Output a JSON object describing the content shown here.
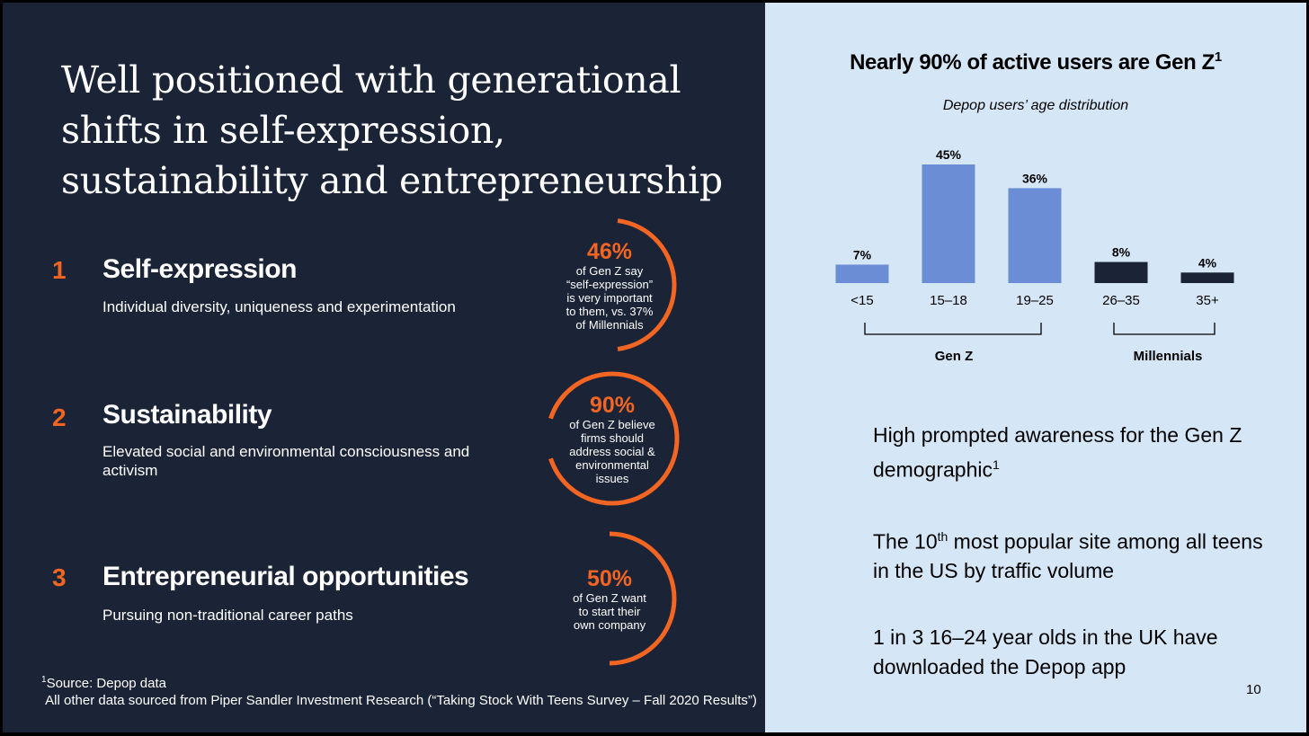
{
  "left": {
    "title": "Well positioned with generational shifts in self-expression, sustainability and entrepreneurship",
    "items": [
      {
        "num": "1",
        "heading": "Self-expression",
        "desc": "Individual diversity, uniqueness and experimentation",
        "pct": "46%",
        "caption": "of Gen Z say\n“self-expression”\nis very important\nto them, vs. 37%\nof Millennials",
        "ring_fraction": 0.46
      },
      {
        "num": "2",
        "heading": "Sustainability",
        "desc": "Elevated social and environmental consciousness and activism",
        "pct": "90%",
        "caption": "of Gen Z believe\nfirms should\naddress social &\nenvironmental\nissues",
        "ring_fraction": 0.9
      },
      {
        "num": "3",
        "heading": "Entrepreneurial opportunities",
        "desc": "Pursuing non-traditional career paths",
        "pct": "50%",
        "caption": "of Gen Z want\nto start their\nown company",
        "ring_fraction": 0.5
      }
    ],
    "footnote_sup": "1",
    "footnote_line1": "Source: Depop data",
    "footnote_line2": "All other data sourced from Piper Sandler Investment Research (“Taking Stock With Teens Survey – Fall 2020 Results”)"
  },
  "right": {
    "chart_title": "Nearly 90% of active users are Gen Z",
    "chart_title_sup": "1",
    "chart_subtitle": "Depop users’ age distribution",
    "stat1_main": "High prompted awareness for the Gen Z demographic",
    "stat1_sup": "1",
    "stat2_pre": "The 10",
    "stat2_sup": "th",
    "stat2_post": " most popular site among all teens in the US by traffic volume",
    "stat3": "1 in 3 16–24 year olds in the UK have downloaded the Depop app",
    "page_number": "10"
  },
  "colors": {
    "left_bg": "#1b2336",
    "right_bg": "#d5e6f7",
    "accent_orange": "#f26522",
    "genz_bar": "#6b8dd6",
    "millennial_bar": "#1b2336"
  },
  "chart_data": {
    "type": "bar",
    "categories": [
      "<15",
      "15–18",
      "19–25",
      "26–35",
      "35+"
    ],
    "values": [
      7,
      45,
      36,
      8,
      4
    ],
    "value_labels": [
      "7%",
      "45%",
      "36%",
      "8%",
      "4%"
    ],
    "bar_groups": [
      "Gen Z",
      "Gen Z",
      "Gen Z",
      "Millennials",
      "Millennials"
    ],
    "groups": [
      {
        "name": "Gen Z",
        "from": 0,
        "to": 2
      },
      {
        "name": "Millennials",
        "from": 3,
        "to": 4
      }
    ],
    "title": "Nearly 90% of active users are Gen Z",
    "subtitle": "Depop users’ age distribution",
    "xlabel": "",
    "ylabel": "",
    "ylim": [
      0,
      45
    ],
    "grid": false
  }
}
